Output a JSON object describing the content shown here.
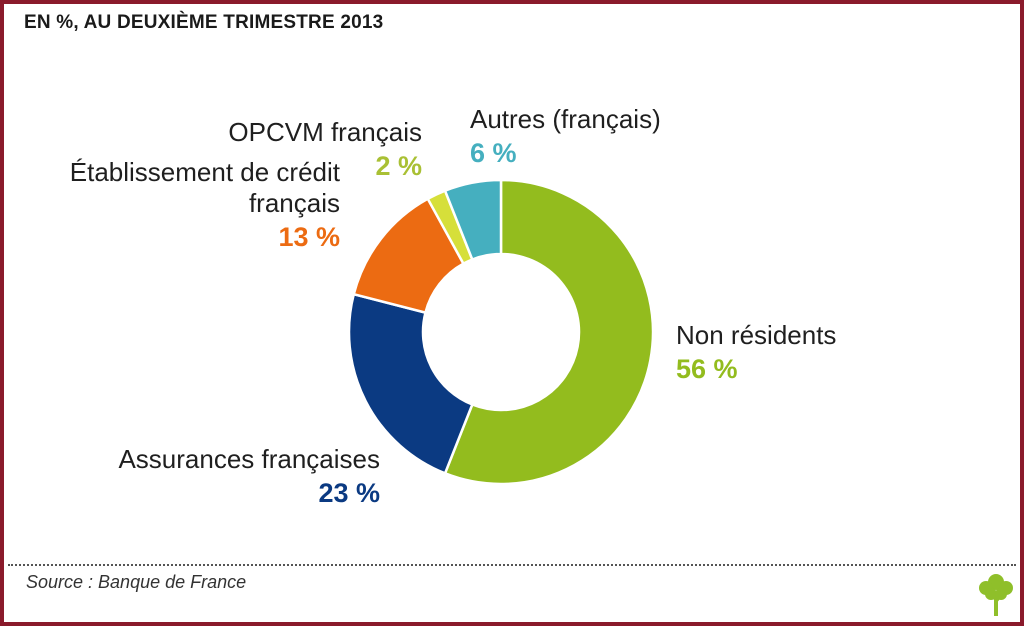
{
  "title": "EN %, AU DEUXIÈME TRIMESTRE 2013",
  "source": "Source : Banque de France",
  "logo_icon": "tree-icon",
  "chart_data": {
    "type": "pie",
    "variant": "donut",
    "title": "EN %, AU DEUXIÈME TRIMESTRE 2013",
    "unit": "%",
    "start_angle_deg": 0,
    "direction": "clockwise",
    "slices": [
      {
        "label": "Non résidents",
        "value": 56,
        "value_label": "56 %",
        "color": "#93bc1e"
      },
      {
        "label": "Assurances françaises",
        "value": 23,
        "value_label": "23 %",
        "color": "#0b3a82"
      },
      {
        "label": "Établissement de crédit français",
        "label_lines": [
          "Établissement de crédit",
          "français"
        ],
        "value": 13,
        "value_label": "13 %",
        "color": "#ec6b12"
      },
      {
        "label": "OPCVM français",
        "value": 2,
        "value_label": "2 %",
        "color": "#d6df3a"
      },
      {
        "label": "Autres (français)",
        "value": 6,
        "value_label": "6 %",
        "color": "#45afbf"
      }
    ],
    "legend": "labels-next-to-slices"
  }
}
